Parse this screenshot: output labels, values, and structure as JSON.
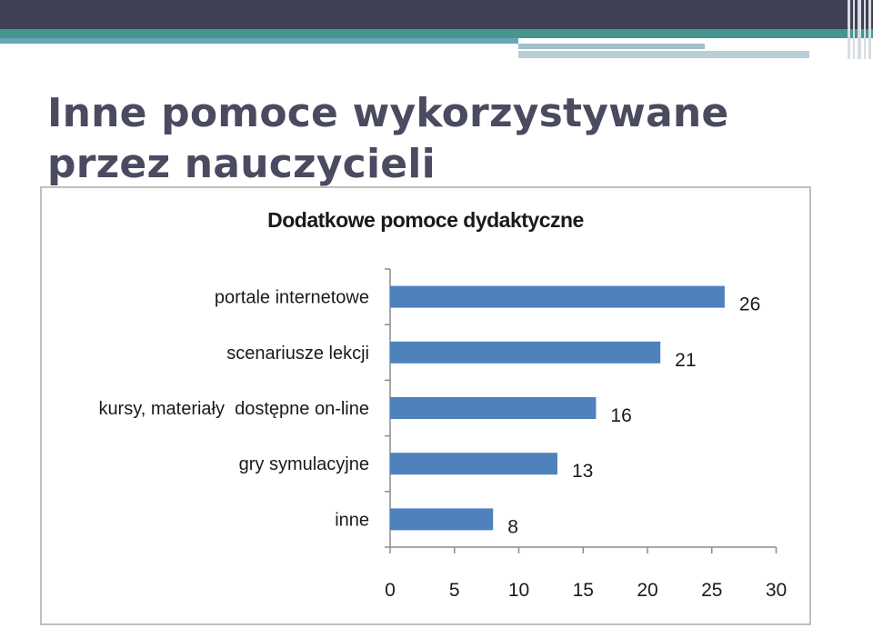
{
  "slide": {
    "title": "Inne pomoce wykorzystywane przez nauczycieli"
  },
  "colors": {
    "bar": "#4f81bd",
    "header_dark": "#3f3f55",
    "header_teal": "#45968c",
    "title": "#4a4a60"
  },
  "chart_data": {
    "type": "bar",
    "orientation": "horizontal",
    "title": "Dodatkowe pomoce dydaktyczne",
    "categories": [
      "portale internetowe",
      "scenariusze lekcji",
      "kursy, materiały  dostępne on-line",
      "gry symulacyjne",
      "inne"
    ],
    "values": [
      26,
      21,
      16,
      13,
      8
    ],
    "xlim": [
      0,
      30
    ],
    "xticks": [
      0,
      5,
      10,
      15,
      20,
      25,
      30
    ],
    "xlabel": "",
    "ylabel": "",
    "grid": false,
    "legend": "none",
    "data_labels": true
  }
}
